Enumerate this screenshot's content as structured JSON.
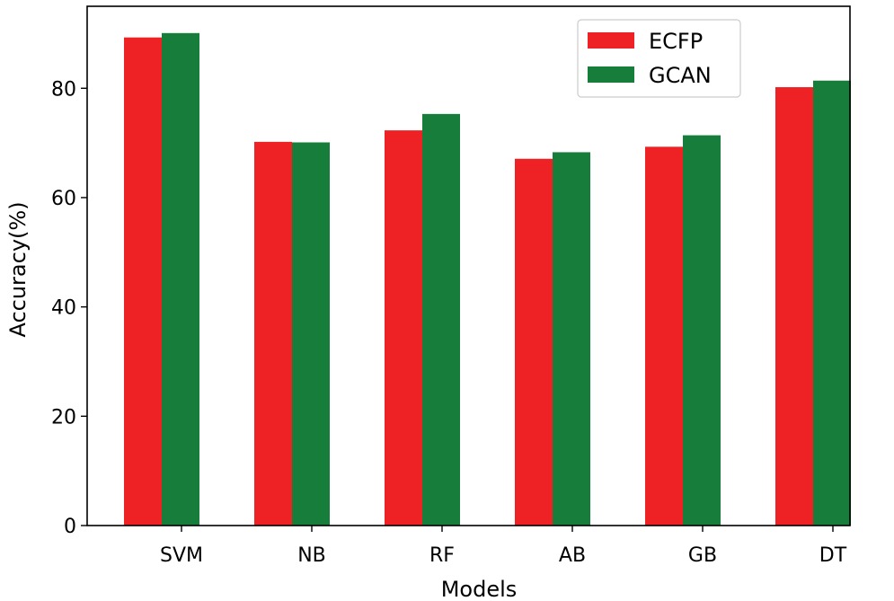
{
  "chart_data": {
    "type": "bar",
    "title": "",
    "xlabel": "Models",
    "ylabel": "Accuracy(%)",
    "categories": [
      "SVM",
      "NB",
      "RF",
      "AB",
      "GB",
      "DT"
    ],
    "series": [
      {
        "name": "ECFP",
        "color": "#ee2224",
        "values": [
          89.3,
          70.2,
          72.3,
          67.1,
          69.3,
          80.2
        ]
      },
      {
        "name": "GCAN",
        "color": "#167d3a",
        "values": [
          90.1,
          70.1,
          75.3,
          68.3,
          71.4,
          81.4
        ]
      }
    ],
    "ylim": [
      0,
      95
    ],
    "yticks": [
      0,
      20,
      40,
      60,
      80
    ],
    "grid": false,
    "legend": "top-right"
  }
}
